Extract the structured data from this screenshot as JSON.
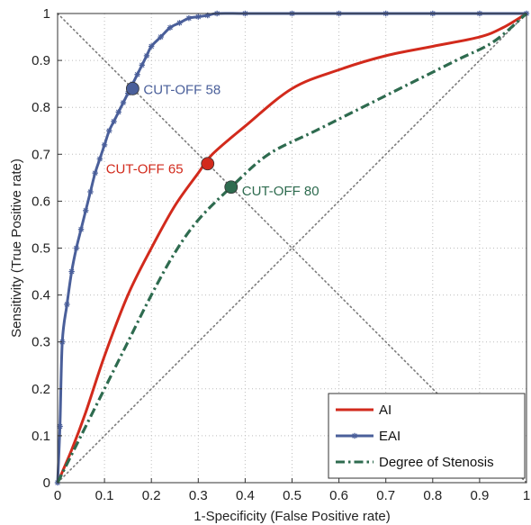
{
  "chart_data": {
    "type": "line",
    "xlabel": "1-Specificity (False Positive rate)",
    "ylabel": "Sensitivity (True Positive rate)",
    "xlim": [
      0,
      1
    ],
    "ylim": [
      0,
      1
    ],
    "grid": true,
    "x_ticks": [
      "0",
      "0.1",
      "0.2",
      "0.3",
      "0.4",
      "0.5",
      "0.6",
      "0.7",
      "0.8",
      "0.9",
      "1"
    ],
    "y_ticks": [
      "0",
      "0.1",
      "0.2",
      "0.3",
      "0.4",
      "0.5",
      "0.6",
      "0.7",
      "0.8",
      "0.9",
      "1"
    ],
    "legend_position": "bottom-right",
    "series": [
      {
        "name": "AI",
        "color": "#d22a1c",
        "style": "solid",
        "points": [
          [
            0,
            0
          ],
          [
            0.03,
            0.07
          ],
          [
            0.06,
            0.15
          ],
          [
            0.1,
            0.27
          ],
          [
            0.15,
            0.4
          ],
          [
            0.2,
            0.5
          ],
          [
            0.25,
            0.59
          ],
          [
            0.3,
            0.66
          ],
          [
            0.33,
            0.7
          ],
          [
            0.4,
            0.76
          ],
          [
            0.5,
            0.84
          ],
          [
            0.6,
            0.88
          ],
          [
            0.7,
            0.91
          ],
          [
            0.8,
            0.93
          ],
          [
            0.9,
            0.95
          ],
          [
            0.95,
            0.97
          ],
          [
            1,
            1
          ]
        ]
      },
      {
        "name": "EAI",
        "color": "#4a5f9a",
        "style": "solid-with-markers",
        "points": [
          [
            0,
            0
          ],
          [
            0.005,
            0.12
          ],
          [
            0.01,
            0.3
          ],
          [
            0.02,
            0.38
          ],
          [
            0.03,
            0.45
          ],
          [
            0.04,
            0.5
          ],
          [
            0.05,
            0.54
          ],
          [
            0.06,
            0.58
          ],
          [
            0.07,
            0.62
          ],
          [
            0.08,
            0.66
          ],
          [
            0.09,
            0.69
          ],
          [
            0.1,
            0.72
          ],
          [
            0.11,
            0.75
          ],
          [
            0.12,
            0.77
          ],
          [
            0.13,
            0.79
          ],
          [
            0.14,
            0.81
          ],
          [
            0.15,
            0.83
          ],
          [
            0.16,
            0.85
          ],
          [
            0.17,
            0.87
          ],
          [
            0.18,
            0.89
          ],
          [
            0.19,
            0.91
          ],
          [
            0.2,
            0.93
          ],
          [
            0.22,
            0.95
          ],
          [
            0.24,
            0.97
          ],
          [
            0.26,
            0.98
          ],
          [
            0.28,
            0.99
          ],
          [
            0.3,
            0.993
          ],
          [
            0.32,
            0.996
          ],
          [
            0.34,
            1
          ],
          [
            0.4,
            1
          ],
          [
            0.5,
            1
          ],
          [
            0.6,
            1
          ],
          [
            0.7,
            1
          ],
          [
            0.8,
            1
          ],
          [
            0.9,
            1
          ],
          [
            1,
            1
          ]
        ]
      },
      {
        "name": "Degree of Stenosis",
        "color": "#2e6b4f",
        "style": "dash-dot",
        "points": [
          [
            0,
            0
          ],
          [
            0.05,
            0.1
          ],
          [
            0.1,
            0.2
          ],
          [
            0.15,
            0.3
          ],
          [
            0.2,
            0.4
          ],
          [
            0.25,
            0.49
          ],
          [
            0.3,
            0.56
          ],
          [
            0.37,
            0.63
          ],
          [
            0.45,
            0.7
          ],
          [
            0.55,
            0.75
          ],
          [
            0.65,
            0.8
          ],
          [
            0.75,
            0.85
          ],
          [
            0.85,
            0.9
          ],
          [
            0.93,
            0.94
          ],
          [
            1,
            1
          ]
        ]
      }
    ],
    "reference_lines": [
      {
        "from": [
          0,
          0
        ],
        "to": [
          1,
          1
        ],
        "style": "dotted",
        "color": "#7a7a7a"
      },
      {
        "from": [
          0,
          1
        ],
        "to": [
          1,
          0
        ],
        "style": "dotted",
        "color": "#7a7a7a"
      }
    ],
    "annotations": [
      {
        "text": "CUT-OFF 58",
        "point": [
          0.16,
          0.84
        ],
        "color": "#4a5f9a"
      },
      {
        "text": "CUT-OFF 65",
        "point": [
          0.32,
          0.68
        ],
        "color": "#d22a1c"
      },
      {
        "text": "CUT-OFF 80",
        "point": [
          0.37,
          0.63
        ],
        "color": "#2e6b4f"
      }
    ]
  }
}
